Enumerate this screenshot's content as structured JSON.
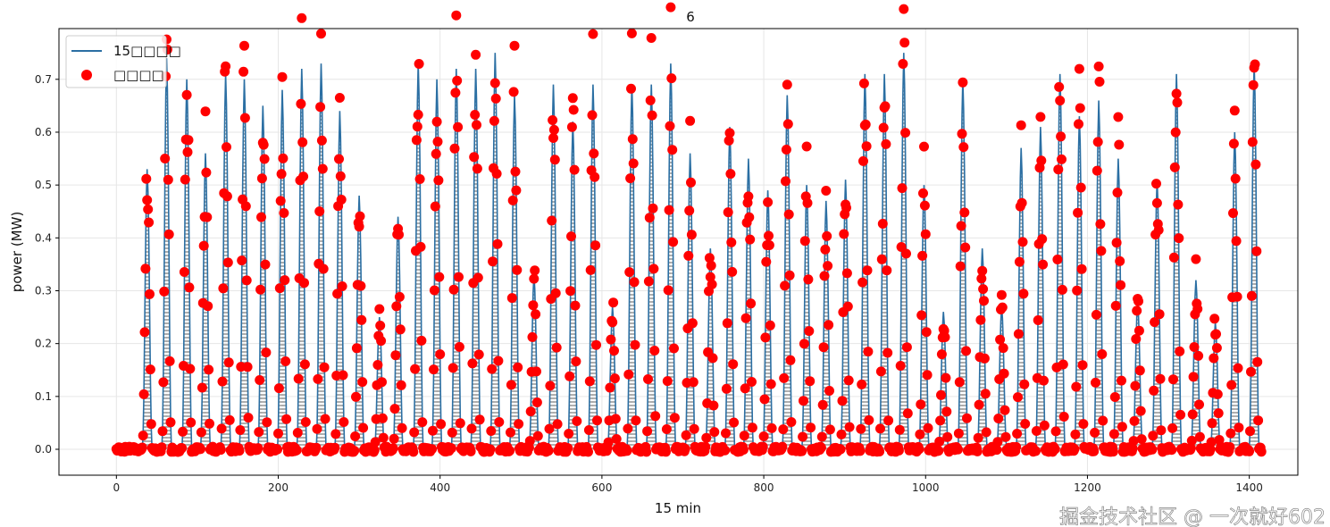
{
  "chart_data": {
    "type": "line",
    "title": "6",
    "xlabel": "15 min",
    "ylabel": "power (MW)",
    "xlim": [
      -71,
      1460
    ],
    "ylim": [
      -0.049,
      0.796
    ],
    "xticks": [
      0,
      200,
      400,
      600,
      800,
      1000,
      1200,
      1400
    ],
    "yticks": [
      0.0,
      0.1,
      0.2,
      0.3,
      0.4,
      0.5,
      0.6,
      0.7
    ],
    "grid": true,
    "legend_position": "top-left",
    "cycle_length_points": 24,
    "n_points": 1416,
    "series": [
      {
        "name": "15□□□□",
        "style": "line",
        "color": "#2b6fa3"
      },
      {
        "name": "□□□□",
        "style": "markers",
        "color": "#ff0000"
      }
    ],
    "cycle_peaks": {
      "x": [
        38,
        62,
        87,
        110,
        135,
        158,
        181,
        205,
        229,
        253,
        276,
        300,
        325,
        348,
        373,
        396,
        420,
        444,
        468,
        492,
        516,
        540,
        564,
        589,
        613,
        637,
        661,
        685,
        709,
        734,
        758,
        781,
        805,
        829,
        853,
        877,
        901,
        925,
        949,
        973,
        998,
        1022,
        1046,
        1070,
        1094,
        1118,
        1142,
        1166,
        1190,
        1214,
        1238,
        1262,
        1286,
        1310,
        1334,
        1358,
        1382,
        1406
      ],
      "y": [
        0.53,
        0.74,
        0.7,
        0.56,
        0.71,
        0.7,
        0.65,
        0.68,
        0.72,
        0.73,
        0.64,
        0.48,
        0.25,
        0.44,
        0.73,
        0.7,
        0.72,
        0.72,
        0.75,
        0.67,
        0.33,
        0.69,
        0.62,
        0.69,
        0.27,
        0.69,
        0.69,
        0.73,
        0.56,
        0.38,
        0.61,
        0.55,
        0.49,
        0.67,
        0.5,
        0.47,
        0.51,
        0.71,
        0.71,
        0.75,
        0.5,
        0.26,
        0.7,
        0.38,
        0.27,
        0.57,
        0.61,
        0.71,
        0.63,
        0.66,
        0.55,
        0.28,
        0.51,
        0.71,
        0.32,
        0.24,
        0.6,
        0.73
      ]
    }
  },
  "watermark": "掘金技术社区 @ 一次就好602"
}
